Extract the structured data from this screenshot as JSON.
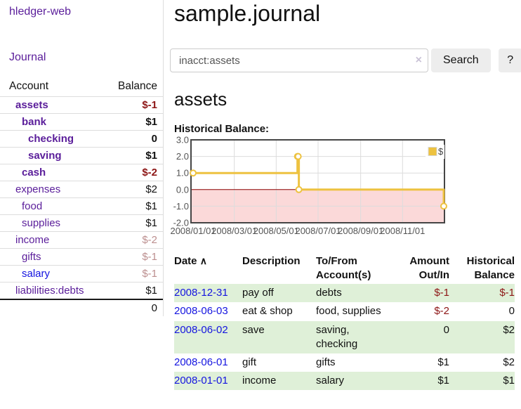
{
  "sidebar": {
    "app_title": "hledger-web",
    "journal_label": "Journal",
    "accounts": {
      "headers": {
        "account": "Account",
        "balance": "Balance"
      },
      "rows": [
        {
          "name": "assets",
          "depth": 1,
          "bold": true,
          "name_color": "purple",
          "balance": "$-1",
          "balance_style": "neg"
        },
        {
          "name": "bank",
          "depth": 2,
          "bold": true,
          "name_color": "purple",
          "balance": "$1",
          "balance_style": "pos"
        },
        {
          "name": "checking",
          "depth": 3,
          "bold": true,
          "name_color": "purple",
          "balance": "0",
          "balance_style": "pos"
        },
        {
          "name": "saving",
          "depth": 3,
          "bold": true,
          "name_color": "purple",
          "balance": "$1",
          "balance_style": "pos"
        },
        {
          "name": "cash",
          "depth": 2,
          "bold": true,
          "name_color": "purple",
          "balance": "$-2",
          "balance_style": "neg"
        },
        {
          "name": "expenses",
          "depth": 1,
          "bold": false,
          "name_color": "purple",
          "balance": "$2",
          "balance_style": "pos"
        },
        {
          "name": "food",
          "depth": 2,
          "bold": false,
          "name_color": "purple",
          "balance": "$1",
          "balance_style": "pos"
        },
        {
          "name": "supplies",
          "depth": 2,
          "bold": false,
          "name_color": "purple",
          "balance": "$1",
          "balance_style": "pos"
        },
        {
          "name": "income",
          "depth": 1,
          "bold": false,
          "name_color": "purple",
          "balance": "$-2",
          "balance_style": "neg_soft"
        },
        {
          "name": "gifts",
          "depth": 2,
          "bold": false,
          "name_color": "purple",
          "balance": "$-1",
          "balance_style": "neg_soft"
        },
        {
          "name": "salary",
          "depth": 2,
          "bold": false,
          "name_color": "blue",
          "balance": "$-1",
          "balance_style": "neg_soft"
        },
        {
          "name": "liabilities:debts",
          "depth": 1,
          "bold": false,
          "name_color": "purple",
          "balance": "$1",
          "balance_style": "pos"
        }
      ],
      "total": "0"
    }
  },
  "main": {
    "title": "sample.journal",
    "search": {
      "value": "inacct:assets",
      "clear_icon": "×",
      "button_label": "Search",
      "help_label": "?"
    },
    "account_heading": "assets",
    "chart_label": "Historical Balance:"
  },
  "chart_data": {
    "type": "line",
    "title": "Historical Balance:",
    "step": true,
    "series": [
      {
        "name": "$",
        "color": "#edc240",
        "points": [
          [
            "2008-01-01",
            1
          ],
          [
            "2008-06-01",
            2
          ],
          [
            "2008-06-02",
            2
          ],
          [
            "2008-06-03",
            0
          ],
          [
            "2008-12-31",
            -1
          ]
        ]
      }
    ],
    "x_ticks": [
      {
        "label": "2008/01/01",
        "day": 0
      },
      {
        "label": "2008/03/01",
        "day": 60
      },
      {
        "label": "2008/05/01",
        "day": 121
      },
      {
        "label": "2008/07/01",
        "day": 182
      },
      {
        "label": "2008/09/01",
        "day": 244
      },
      {
        "label": "2008/11/01",
        "day": 305
      }
    ],
    "y_ticks": [
      "3.0",
      "2.0",
      "1.0",
      "0.0",
      "-1.0",
      "-2.0"
    ],
    "ylim": [
      -2,
      3
    ],
    "x_range_days": [
      0,
      366
    ],
    "grid": true,
    "legend": {
      "label": "$",
      "position": "top-right"
    },
    "negative_region_color": "#fbd9d9",
    "zero_line_color": "#8b0000",
    "border_color": "#454545",
    "grid_color": "#dcdcdc",
    "tick_text_color": "#545454"
  },
  "register": {
    "headers": {
      "date": "Date",
      "sort_icon": "∧",
      "description": "Description",
      "accounts_line1": "To/From",
      "accounts_line2": "Account(s)",
      "amount_line1": "Amount",
      "amount_line2": "Out/In",
      "balance_line1": "Historical",
      "balance_line2": "Balance"
    },
    "rows": [
      {
        "date": "2008-12-31",
        "description": "pay off",
        "accounts": "debts",
        "amount": "$-1",
        "amount_style": "neg",
        "balance": "$-1",
        "balance_style": "neg",
        "shaded": true
      },
      {
        "date": "2008-06-03",
        "description": "eat & shop",
        "accounts": "food, supplies",
        "amount": "$-2",
        "amount_style": "neg",
        "balance": "0",
        "balance_style": "pos",
        "shaded": false
      },
      {
        "date": "2008-06-02",
        "description": "save",
        "accounts": "saving, checking",
        "amount": "0",
        "amount_style": "pos",
        "balance": "$2",
        "balance_style": "pos",
        "shaded": true
      },
      {
        "date": "2008-06-01",
        "description": "gift",
        "accounts": "gifts",
        "amount": "$1",
        "amount_style": "pos",
        "balance": "$2",
        "balance_style": "pos",
        "shaded": false
      },
      {
        "date": "2008-01-01",
        "description": "income",
        "accounts": "salary",
        "amount": "$1",
        "amount_style": "pos",
        "balance": "$1",
        "balance_style": "pos",
        "shaded": true
      }
    ]
  },
  "colors": {
    "purple_link": "#5a1d9a",
    "blue_link": "#1414e0",
    "negative_amount": "#8d1616",
    "negative_amount_soft": "#bc8f8f",
    "row_stripe_green": "#dff0d8",
    "chart_line_gold": "#edc240",
    "chart_negative_fill": "#fbd9d9",
    "chart_zero_line": "#8b0000"
  }
}
